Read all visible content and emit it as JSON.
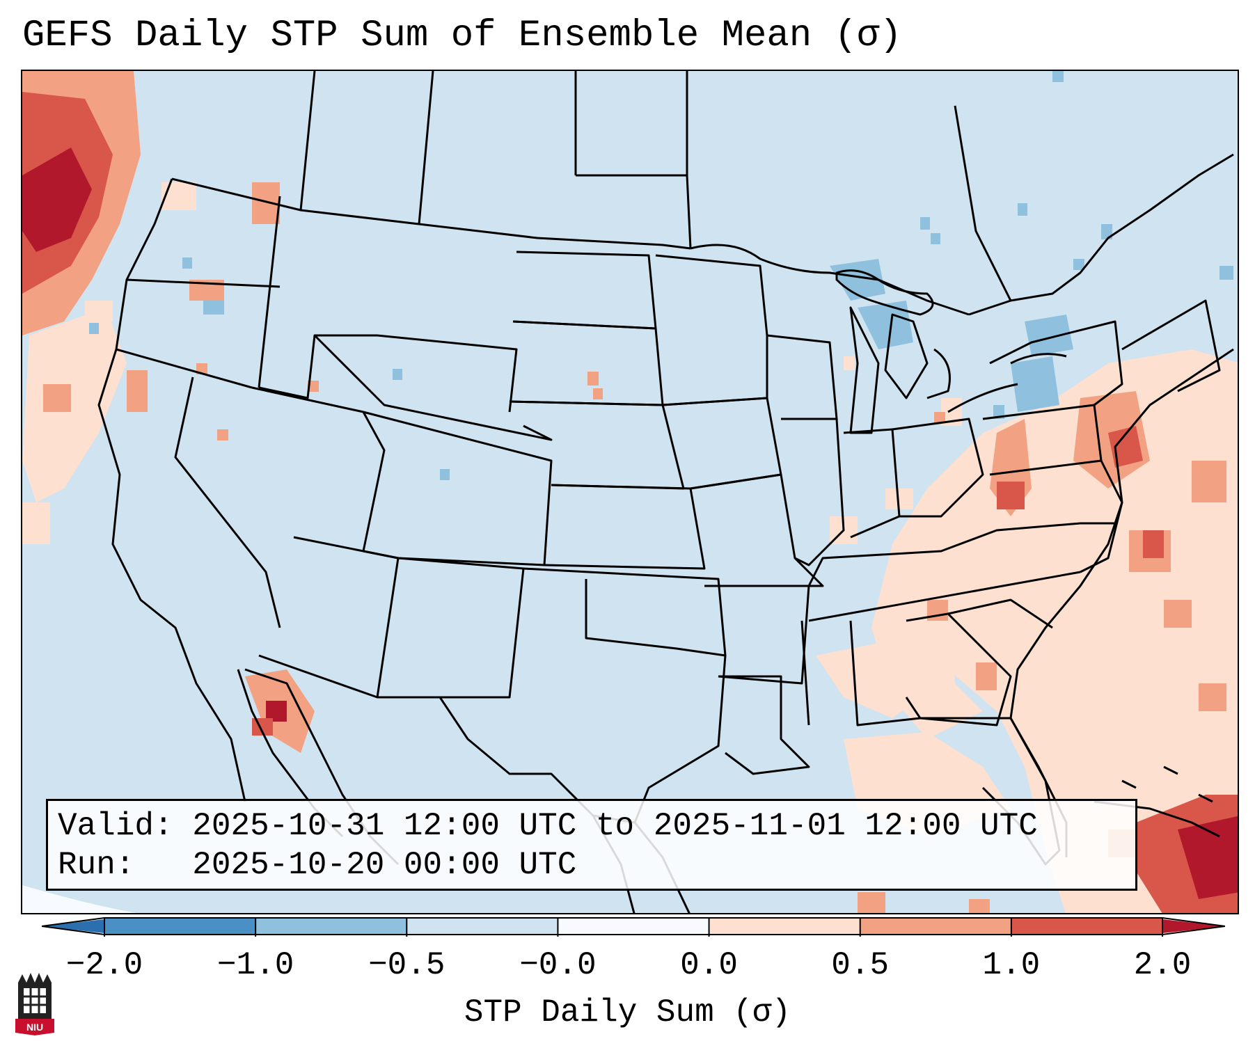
{
  "title": "GEFS Daily STP Sum of Ensemble Mean (σ)",
  "info": {
    "valid_label": "Valid:",
    "valid_value": "2025-10-31 12:00 UTC to 2025-11-01 12:00 UTC",
    "run_label": "Run:",
    "run_value": "2025-10-20 00:00 UTC"
  },
  "colorbar": {
    "label": "STP Daily Sum (σ)",
    "ticks": [
      "−2.0",
      "−1.0",
      "−0.5",
      "−0.0",
      "0.0",
      "0.5",
      "1.0",
      "2.0"
    ],
    "colors": [
      "#4a90c4",
      "#8fc1de",
      "#cfe3f0",
      "#fde0d0",
      "#f2a282",
      "#d9564a"
    ],
    "extend_low_color": "#2c6fae",
    "extend_high_color": "#b2182b"
  },
  "colors": {
    "background_field": "#cfe3f0",
    "outside_projection": "#f7fbff",
    "boundary": "#000000"
  },
  "logo": {
    "name": "niu-logo",
    "text": "NIU"
  }
}
